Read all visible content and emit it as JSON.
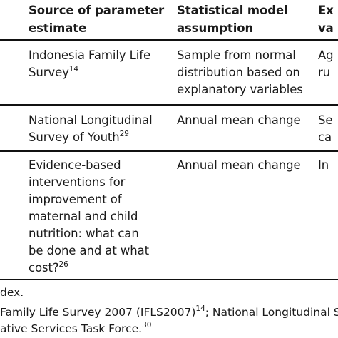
{
  "header": {
    "col_source": [
      "Source of parameter",
      "estimate"
    ],
    "col_model": [
      "Statistical model",
      "assumption"
    ],
    "col_extra": [
      "Ex",
      "va"
    ]
  },
  "rows": [
    {
      "source_lines": [
        "Indonesia Family Life",
        "Survey"
      ],
      "source_ref": "14",
      "model_lines": [
        "Sample from normal",
        "distribution based on",
        "explanatory variables"
      ],
      "extra_lines": [
        "Ag",
        "ru"
      ]
    },
    {
      "source_lines": [
        "National Longitudinal",
        "Survey of Youth"
      ],
      "source_ref": "29",
      "model_lines": [
        "Annual mean change"
      ],
      "extra_lines": [
        "Se",
        "ca"
      ]
    },
    {
      "source_lines": [
        "Evidence-based",
        "interventions for",
        "improvement of",
        "maternal and child",
        "nutrition: what can",
        "be done and at what",
        "cost?"
      ],
      "source_ref": "26",
      "model_lines": [
        "Annual mean change"
      ],
      "extra_lines": [
        "In"
      ]
    }
  ],
  "footnotes": {
    "line1": "dex.",
    "line2_a": "Family Life Survey 2007 (IFLS2007)",
    "line2_ref": "14",
    "line2_b": "; National Longitudinal Survey",
    "line3_a": "ative Services Task Force.",
    "line3_ref": "30"
  }
}
